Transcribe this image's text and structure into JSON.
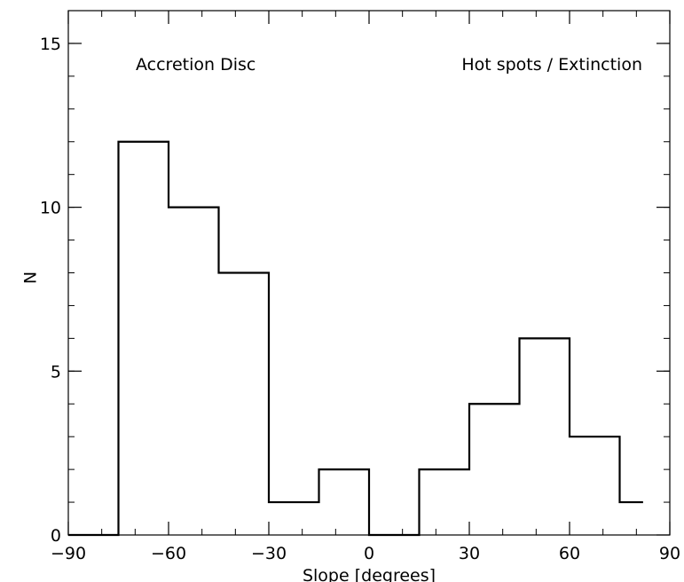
{
  "chart_data": {
    "type": "bar",
    "subtype": "step-histogram",
    "xlabel": "Slope [degrees]",
    "ylabel": "N",
    "xlim": [
      -90,
      90
    ],
    "ylim": [
      0,
      16
    ],
    "xticks": [
      -90,
      -60,
      -30,
      0,
      30,
      60,
      90
    ],
    "yticks": [
      0,
      5,
      10,
      15
    ],
    "bin_edges": [
      -90,
      -75,
      -60,
      -45,
      -30,
      -15,
      0,
      15,
      30,
      45,
      60,
      75,
      82
    ],
    "values": [
      0,
      12,
      10,
      8,
      1,
      2,
      0,
      2,
      4,
      6,
      3,
      1
    ],
    "annotations": [
      {
        "text": "Accretion Disc",
        "position": "top-left"
      },
      {
        "text": "Hot spots / Extinction",
        "position": "top-right"
      }
    ],
    "grid": false,
    "legend": false,
    "colors": {
      "line": "#000000",
      "background": "#ffffff"
    }
  }
}
